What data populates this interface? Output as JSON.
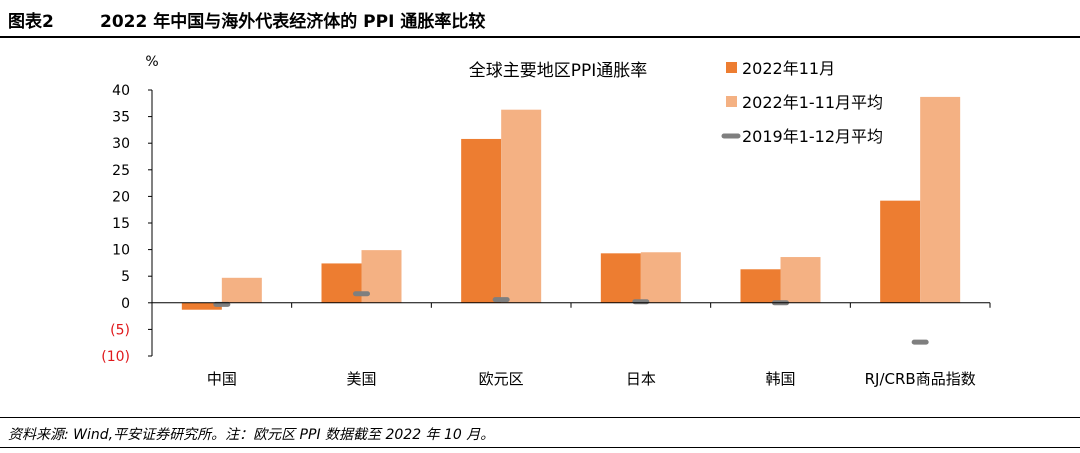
{
  "figure": {
    "number": "图表2",
    "title": "2022 年中国与海外代表经济体的 PPI 通胀率比较"
  },
  "source_note": "资料来源: Wind,平安证券研究所。注：欧元区 PPI 数据截至 2022 年 10 月。",
  "chart_data": {
    "type": "bar",
    "title": "全球主要地区PPI通胀率",
    "ylabel": "%",
    "ylim": [
      -10,
      40
    ],
    "yticks": [
      {
        "value": 40,
        "label": "40"
      },
      {
        "value": 35,
        "label": "35"
      },
      {
        "value": 30,
        "label": "30"
      },
      {
        "value": 25,
        "label": "25"
      },
      {
        "value": 20,
        "label": "20"
      },
      {
        "value": 15,
        "label": "15"
      },
      {
        "value": 10,
        "label": "10"
      },
      {
        "value": 5,
        "label": "5"
      },
      {
        "value": 0,
        "label": "0"
      },
      {
        "value": -5,
        "label": "(5)"
      },
      {
        "value": -10,
        "label": "(10)"
      }
    ],
    "negative_tick_color": "#e0191c",
    "categories": [
      "中国",
      "美国",
      "欧元区",
      "日本",
      "韩国",
      "RJ/CRB商品指数"
    ],
    "series": [
      {
        "name": "2022年11月",
        "kind": "bar",
        "color": "#ed7d31",
        "values": [
          -1.3,
          7.4,
          30.8,
          9.3,
          6.3,
          19.2
        ]
      },
      {
        "name": "2022年1-11月平均",
        "kind": "bar",
        "color": "#f4b183",
        "values": [
          4.7,
          9.9,
          36.3,
          9.5,
          8.6,
          38.7
        ]
      },
      {
        "name": "2019年1-12月平均",
        "kind": "marker",
        "color": "#7f7f7f",
        "values": [
          -0.3,
          1.7,
          0.6,
          0.2,
          0.0,
          -7.4
        ]
      }
    ],
    "legend_position": "top-right",
    "grid": false
  }
}
